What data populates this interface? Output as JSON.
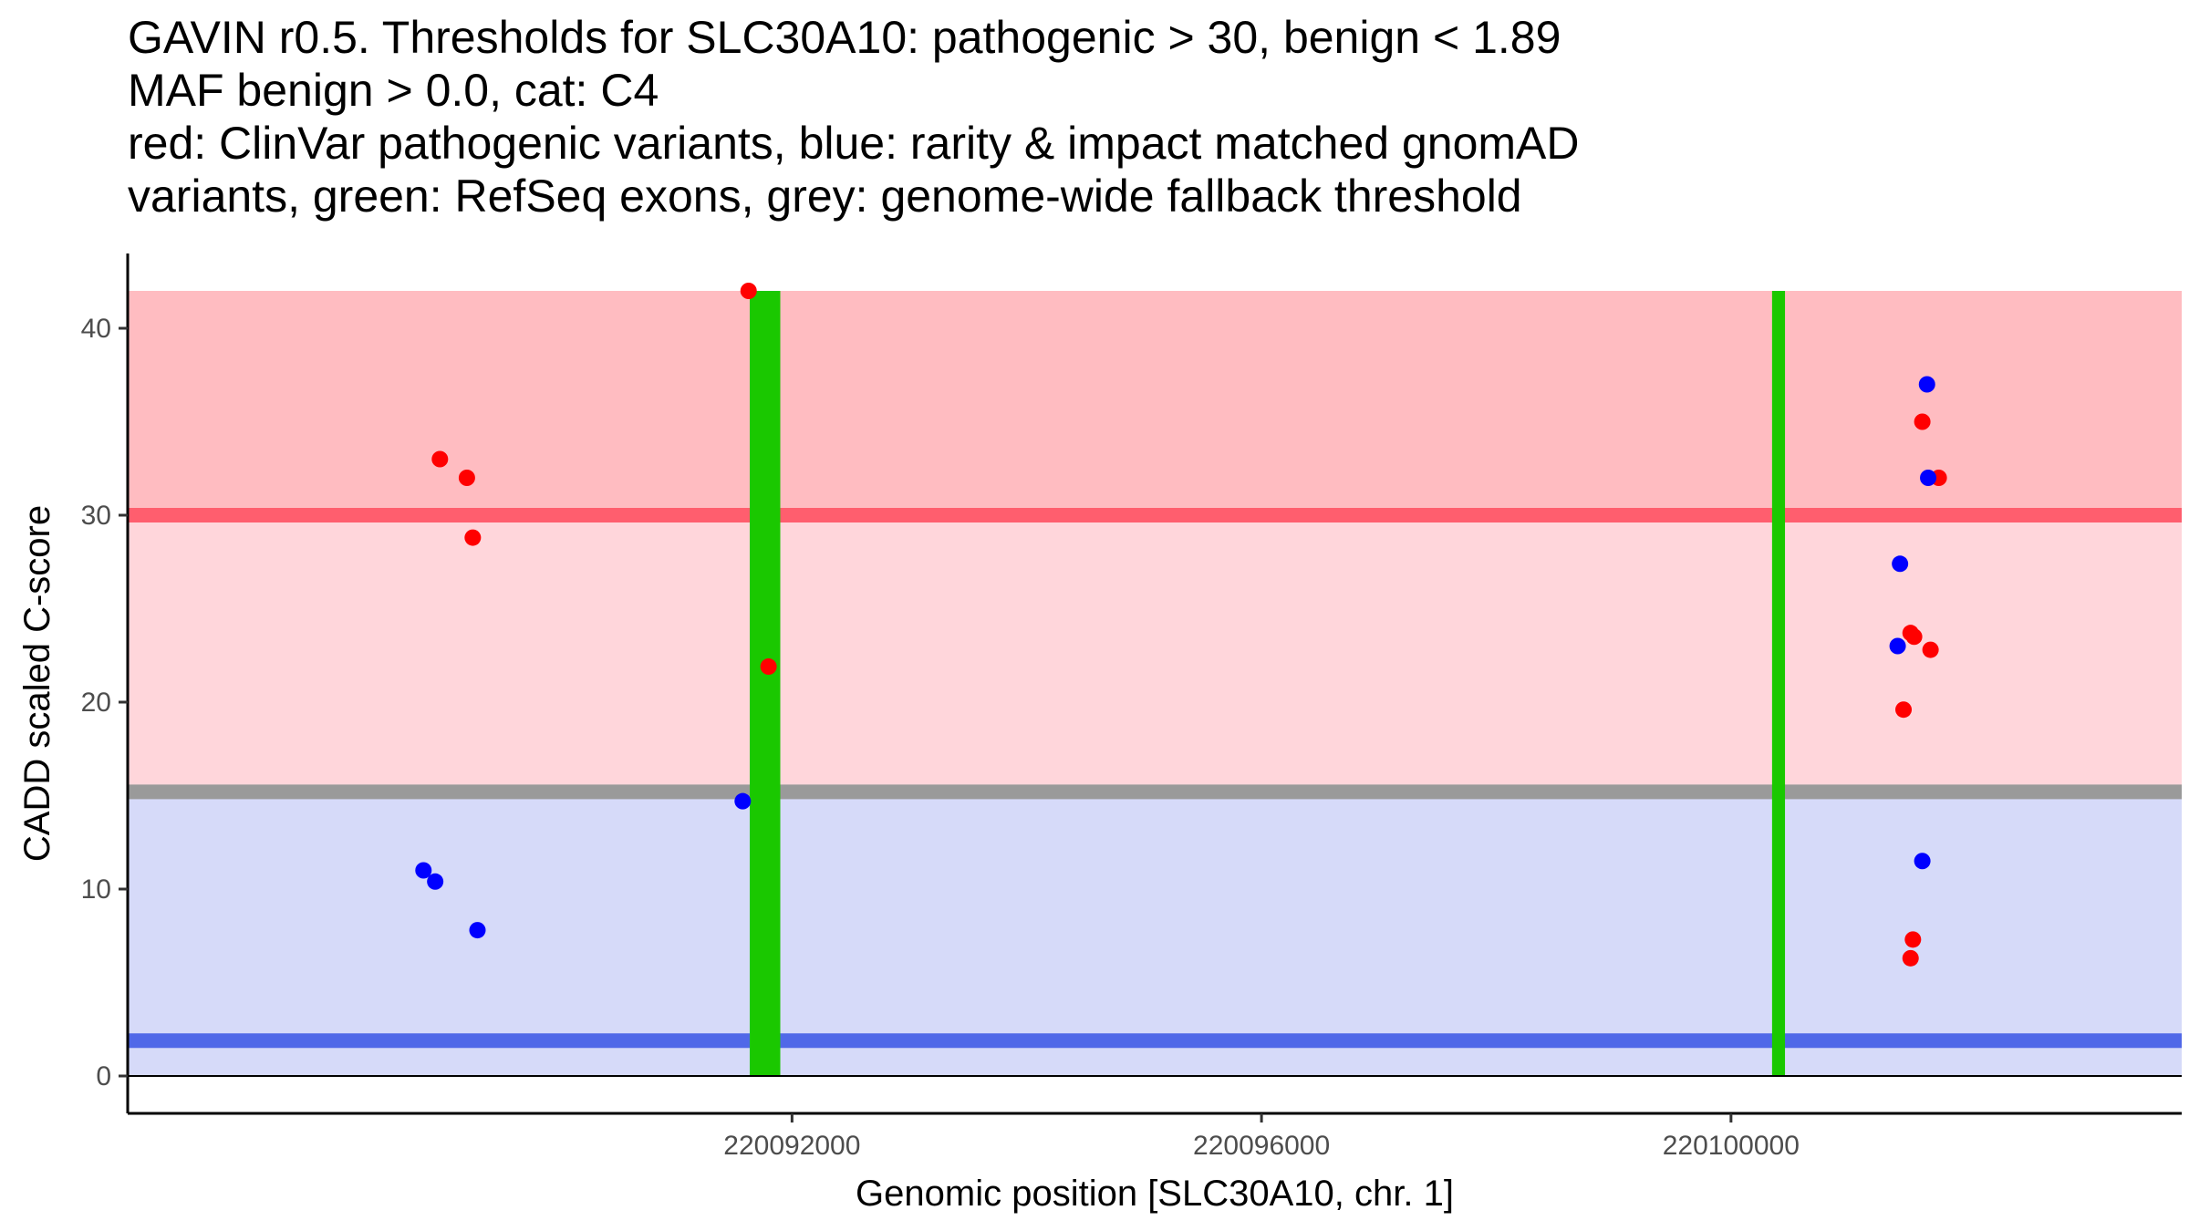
{
  "title_lines": [
    "GAVIN r0.5. Thresholds for SLC30A10: pathogenic > 30, benign < 1.89",
    "MAF benign > 0.0, cat: C4",
    "red: ClinVar pathogenic variants, blue: rarity & impact matched gnomAD",
    "variants, green: RefSeq exons, grey: genome-wide fallback threshold"
  ],
  "chart_data": {
    "type": "scatter",
    "title": "GAVIN r0.5. Thresholds for SLC30A10: pathogenic > 30, benign < 1.89",
    "xlabel": "Genomic position [SLC30A10, chr. 1]",
    "ylabel": "CADD scaled C-score",
    "xlim": [
      220086340,
      220103840
    ],
    "ylim": [
      -2,
      44
    ],
    "x_ticks": [
      220092000,
      220096000,
      220100000
    ],
    "x_tick_labels": [
      "220092000",
      "220096000",
      "220100000"
    ],
    "y_ticks": [
      0,
      10,
      20,
      30,
      40
    ],
    "y_tick_labels": [
      "0",
      "10",
      "20",
      "30",
      "40"
    ],
    "grid": false,
    "bands": [
      {
        "name": "pathogenic-above-threshold",
        "y_from": 30,
        "y_to": 42,
        "color": "#ffbcc1"
      },
      {
        "name": "between-fallback-and-pathogenic",
        "y_from": 15.2,
        "y_to": 30,
        "color": "#ffd6db"
      },
      {
        "name": "below-fallback",
        "y_from": 0,
        "y_to": 15.2,
        "color": "#d6daf9"
      }
    ],
    "threshold_lines": [
      {
        "name": "pathogenic-threshold",
        "y": 30,
        "color": "#ff5e6e"
      },
      {
        "name": "fallback-threshold",
        "y": 15.2,
        "color": "#9a9a9a"
      },
      {
        "name": "benign-threshold",
        "y": 1.89,
        "color": "#5068e8"
      }
    ],
    "exons": [
      {
        "name": "exon-1",
        "x_start": 220091640,
        "x_end": 220091900,
        "y_top": 42,
        "color": "#1ac800"
      },
      {
        "name": "exon-2",
        "x_start": 220100350,
        "x_end": 220100460,
        "y_top": 42,
        "color": "#1ac800"
      }
    ],
    "series": [
      {
        "name": "ClinVar pathogenic variants",
        "color": "#ff0000",
        "points": [
          {
            "x": 220089000,
            "y": 33.0
          },
          {
            "x": 220089230,
            "y": 32.0
          },
          {
            "x": 220089280,
            "y": 28.8
          },
          {
            "x": 220091630,
            "y": 42.0
          },
          {
            "x": 220091800,
            "y": 21.9
          },
          {
            "x": 220101630,
            "y": 35.0
          },
          {
            "x": 220101770,
            "y": 32.0
          },
          {
            "x": 220101530,
            "y": 23.7
          },
          {
            "x": 220101560,
            "y": 23.5
          },
          {
            "x": 220101700,
            "y": 22.8
          },
          {
            "x": 220101470,
            "y": 19.6
          },
          {
            "x": 220101550,
            "y": 7.3
          },
          {
            "x": 220101530,
            "y": 6.3
          }
        ]
      },
      {
        "name": "rarity & impact matched gnomAD variants",
        "color": "#0000ff",
        "points": [
          {
            "x": 220101670,
            "y": 37.0
          },
          {
            "x": 220101680,
            "y": 32.0
          },
          {
            "x": 220101440,
            "y": 27.4
          },
          {
            "x": 220101420,
            "y": 23.0
          },
          {
            "x": 220101630,
            "y": 11.5
          },
          {
            "x": 220091580,
            "y": 14.7
          },
          {
            "x": 220088860,
            "y": 11.0
          },
          {
            "x": 220088960,
            "y": 10.4
          },
          {
            "x": 220089320,
            "y": 7.8
          }
        ]
      }
    ]
  }
}
